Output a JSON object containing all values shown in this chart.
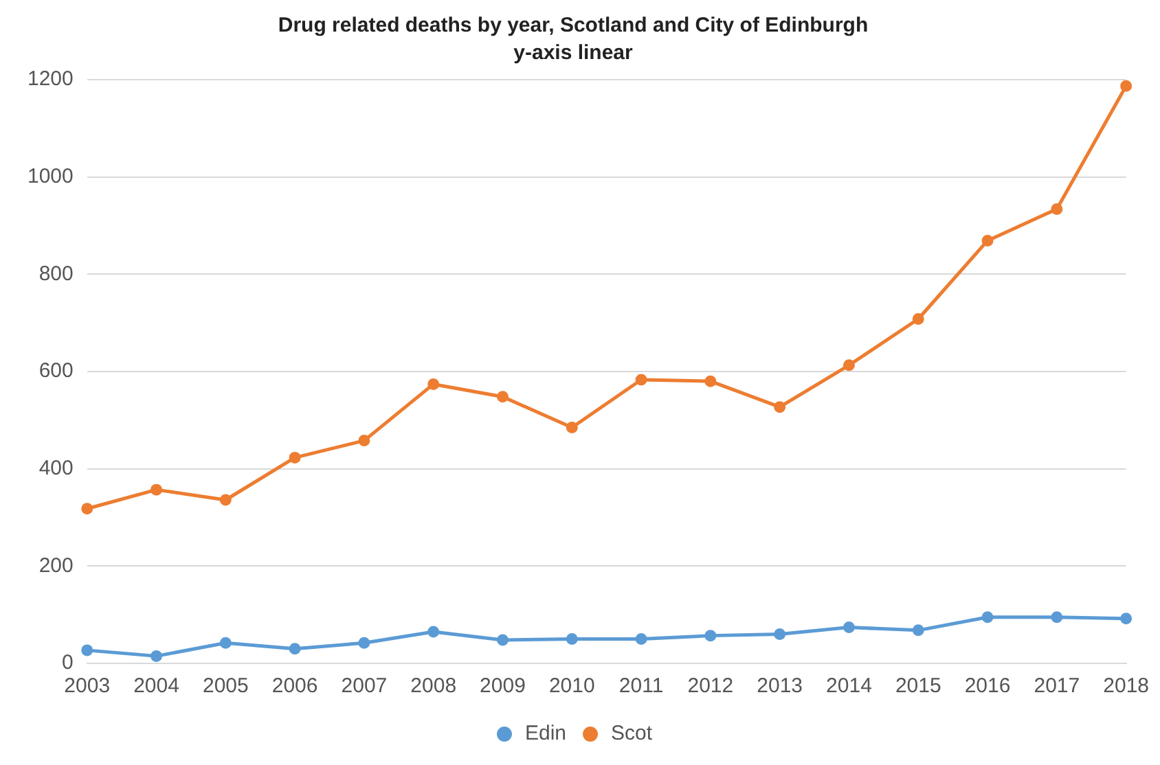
{
  "chart_data": {
    "type": "line",
    "title": "Drug related deaths by year, Scotland and City of Edinburgh",
    "subtitle": "y-axis linear",
    "categories": [
      "2003",
      "2004",
      "2005",
      "2006",
      "2007",
      "2008",
      "2009",
      "2010",
      "2011",
      "2012",
      "2013",
      "2014",
      "2015",
      "2016",
      "2017",
      "2018"
    ],
    "series": [
      {
        "name": "Edin",
        "color": "#5b9bd5",
        "values": [
          27,
          15,
          42,
          30,
          42,
          65,
          48,
          50,
          50,
          57,
          60,
          74,
          68,
          95,
          95,
          92
        ]
      },
      {
        "name": "Scot",
        "color": "#ed7d31",
        "values": [
          318,
          357,
          336,
          423,
          458,
          574,
          548,
          485,
          583,
          580,
          527,
          613,
          708,
          869,
          934,
          1187
        ]
      }
    ],
    "ylim": [
      0,
      1200
    ],
    "yticks": [
      0,
      200,
      400,
      600,
      800,
      1000,
      1200
    ],
    "grid": "y",
    "legend": "bottom",
    "marker": "circle",
    "line_style": "solid"
  }
}
